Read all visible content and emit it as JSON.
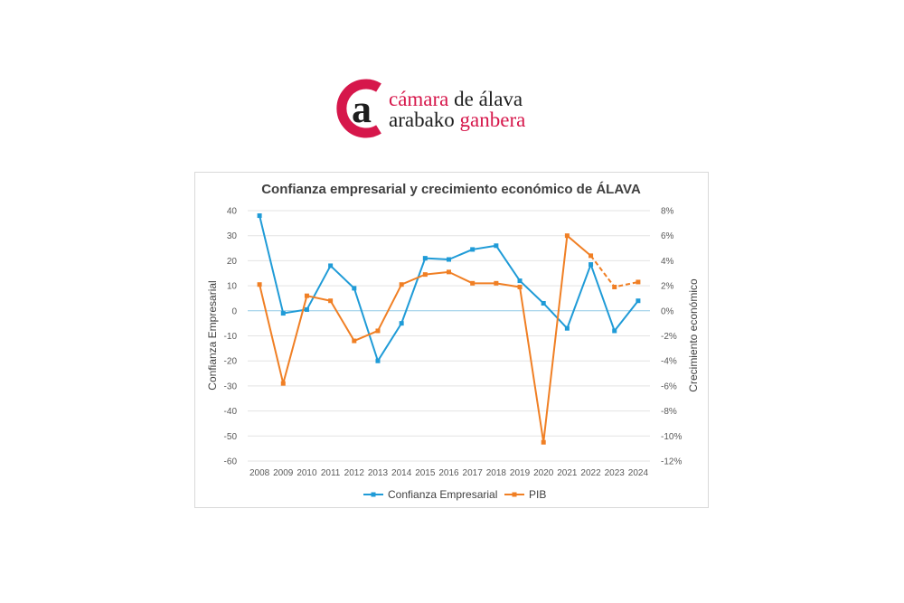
{
  "logo": {
    "line1_red": "cámara",
    "line1_dark": "de álava",
    "line2_dark": "arabako",
    "line2_red": "ganbera",
    "brand_color": "#d6174b",
    "mark_letter": "a"
  },
  "chart_data": {
    "type": "line",
    "title": "Confianza empresarial y crecimiento económico de ÁLAVA",
    "ylabel": "Confianza Empresarial",
    "y2label": "Crecimiento económico",
    "x": [
      "2008",
      "2009",
      "2010",
      "2011",
      "2012",
      "2013",
      "2014",
      "2015",
      "2016",
      "2017",
      "2018",
      "2019",
      "2020",
      "2021",
      "2022",
      "2023",
      "2024"
    ],
    "ylim": [
      -60,
      40
    ],
    "y_ticks": [
      40,
      30,
      20,
      10,
      0,
      -10,
      -20,
      -30,
      -40,
      -50,
      -60
    ],
    "y2lim": [
      -12,
      8
    ],
    "y2_ticks": [
      "8%",
      "6%",
      "4%",
      "2%",
      "0%",
      "-2%",
      "-4%",
      "-6%",
      "-8%",
      "-10%",
      "-12%"
    ],
    "grid": "horizontal",
    "legend_position": "bottom",
    "series": [
      {
        "name": "Confianza Empresarial",
        "axis": "left",
        "color": "#1f9bd7",
        "values": [
          38,
          -1,
          0.5,
          18,
          9,
          -20,
          -5,
          21,
          20.5,
          24.5,
          26,
          12,
          3,
          -7,
          18.5,
          -8,
          4
        ]
      },
      {
        "name": "PIB",
        "axis": "right",
        "unit": "%",
        "color": "#f07f24",
        "dashed_from": "2022",
        "values": [
          2.1,
          -5.8,
          1.2,
          0.8,
          -2.4,
          -1.6,
          2.1,
          2.9,
          3.1,
          2.2,
          2.2,
          1.9,
          -10.5,
          6.0,
          4.4,
          1.9,
          2.3
        ]
      }
    ]
  }
}
